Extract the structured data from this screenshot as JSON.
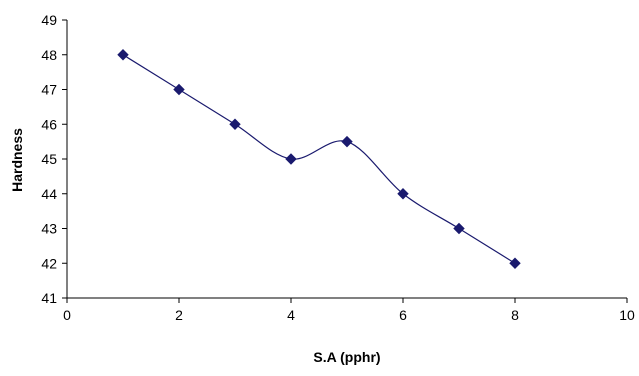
{
  "chart_data": {
    "type": "line",
    "title": "",
    "xlabel": "S.A (pphr)",
    "ylabel": "Hardness",
    "xlim": [
      0,
      10
    ],
    "ylim": [
      41,
      49
    ],
    "x_ticks": [
      0,
      2,
      4,
      6,
      8,
      10
    ],
    "y_ticks": [
      41,
      42,
      43,
      44,
      45,
      46,
      47,
      48,
      49
    ],
    "grid": false,
    "legend": "none",
    "series": [
      {
        "color": "#1a1a6e",
        "marker": "diamond",
        "smooth": true,
        "x": [
          1,
          2,
          3,
          4,
          5,
          6,
          7,
          8
        ],
        "y": [
          48,
          47,
          46,
          45,
          45.5,
          44,
          43,
          42
        ]
      }
    ]
  }
}
